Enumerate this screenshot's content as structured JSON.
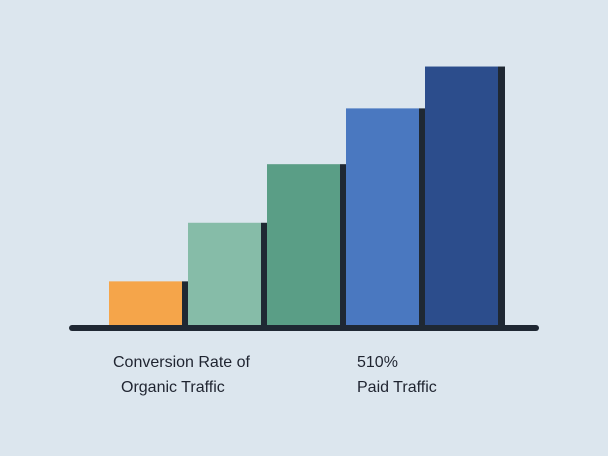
{
  "chart_data": {
    "type": "bar",
    "categories": [
      "",
      "",
      "",
      "",
      ""
    ],
    "values": [
      16,
      37,
      58,
      78,
      93
    ],
    "colors": [
      "#f5a54a",
      "#86bca8",
      "#5a9e86",
      "#4a78c0",
      "#2c4d8c"
    ],
    "shadow_color": "#1f2833",
    "axis_color": "#1f2833",
    "ylim": [
      0,
      100
    ],
    "grid": false,
    "annotations": {
      "left_line1": "Conversion Rate of",
      "left_line2": "Organic Traffic",
      "right_line1": "510%",
      "right_line2": "Paid Traffic"
    }
  }
}
